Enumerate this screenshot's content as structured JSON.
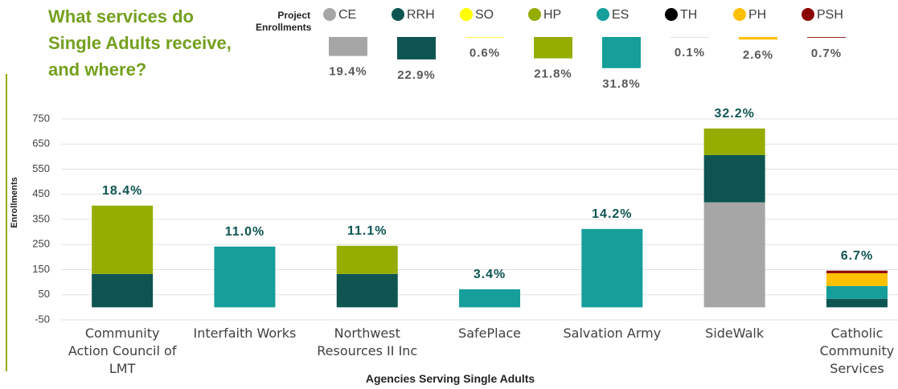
{
  "chart_data": [
    {
      "type": "bar",
      "title": "Project Enrollments",
      "values": [
        19.4,
        22.9,
        0.6,
        21.8,
        31.8,
        0.1,
        2.6,
        0.7
      ],
      "value_labels": [
        "19.4%",
        "22.9%",
        "0.6%",
        "21.8%",
        "31.8%",
        "0.1%",
        "2.6%",
        "0.7%"
      ]
    },
    {
      "type": "stacked_bar",
      "title": "What services do Single Adults receive, and where?",
      "y_label": "Enrollments",
      "x_label": "Agencies Serving Single Adults",
      "categories": [
        "Community Action Council of LMT",
        "Interfaith Works",
        "Northwest Resources II Inc",
        "SafePlace",
        "Salvation Army",
        "SideWalk",
        "Catholic Community Services"
      ],
      "series": [
        {
          "name": "CE",
          "color": "#a6a6a6",
          "values": [
            0,
            0,
            0,
            0,
            0,
            418,
            0
          ]
        },
        {
          "name": "RRH",
          "color": "#0e5552",
          "values": [
            133,
            0,
            133,
            0,
            0,
            188,
            34
          ]
        },
        {
          "name": "SO",
          "color": "#ffff00",
          "values": [
            0,
            0,
            0,
            0,
            0,
            0,
            0
          ]
        },
        {
          "name": "HP",
          "color": "#94ad00",
          "values": [
            272,
            0,
            112,
            0,
            0,
            106,
            0
          ]
        },
        {
          "name": "ES",
          "color": "#169e9a",
          "values": [
            0,
            242,
            0,
            72,
            312,
            0,
            51
          ]
        },
        {
          "name": "TH",
          "color": "#000000",
          "values": [
            0,
            0,
            0,
            0,
            0,
            0,
            0
          ]
        },
        {
          "name": "PH",
          "color": "#ffc000",
          "values": [
            0,
            0,
            0,
            0,
            0,
            0,
            51
          ]
        },
        {
          "name": "PSH",
          "color": "#8b0000",
          "values": [
            0,
            0,
            0,
            0,
            0,
            0,
            10
          ]
        }
      ],
      "bar_labels": [
        "18.4%",
        "11.0%",
        "11.1%",
        "3.4%",
        "14.2%",
        "32.2%",
        "6.7%"
      ],
      "ylim": [
        -50,
        750
      ],
      "yticks": [
        -50,
        50,
        150,
        250,
        350,
        450,
        550,
        650,
        750
      ],
      "grid": true
    }
  ]
}
